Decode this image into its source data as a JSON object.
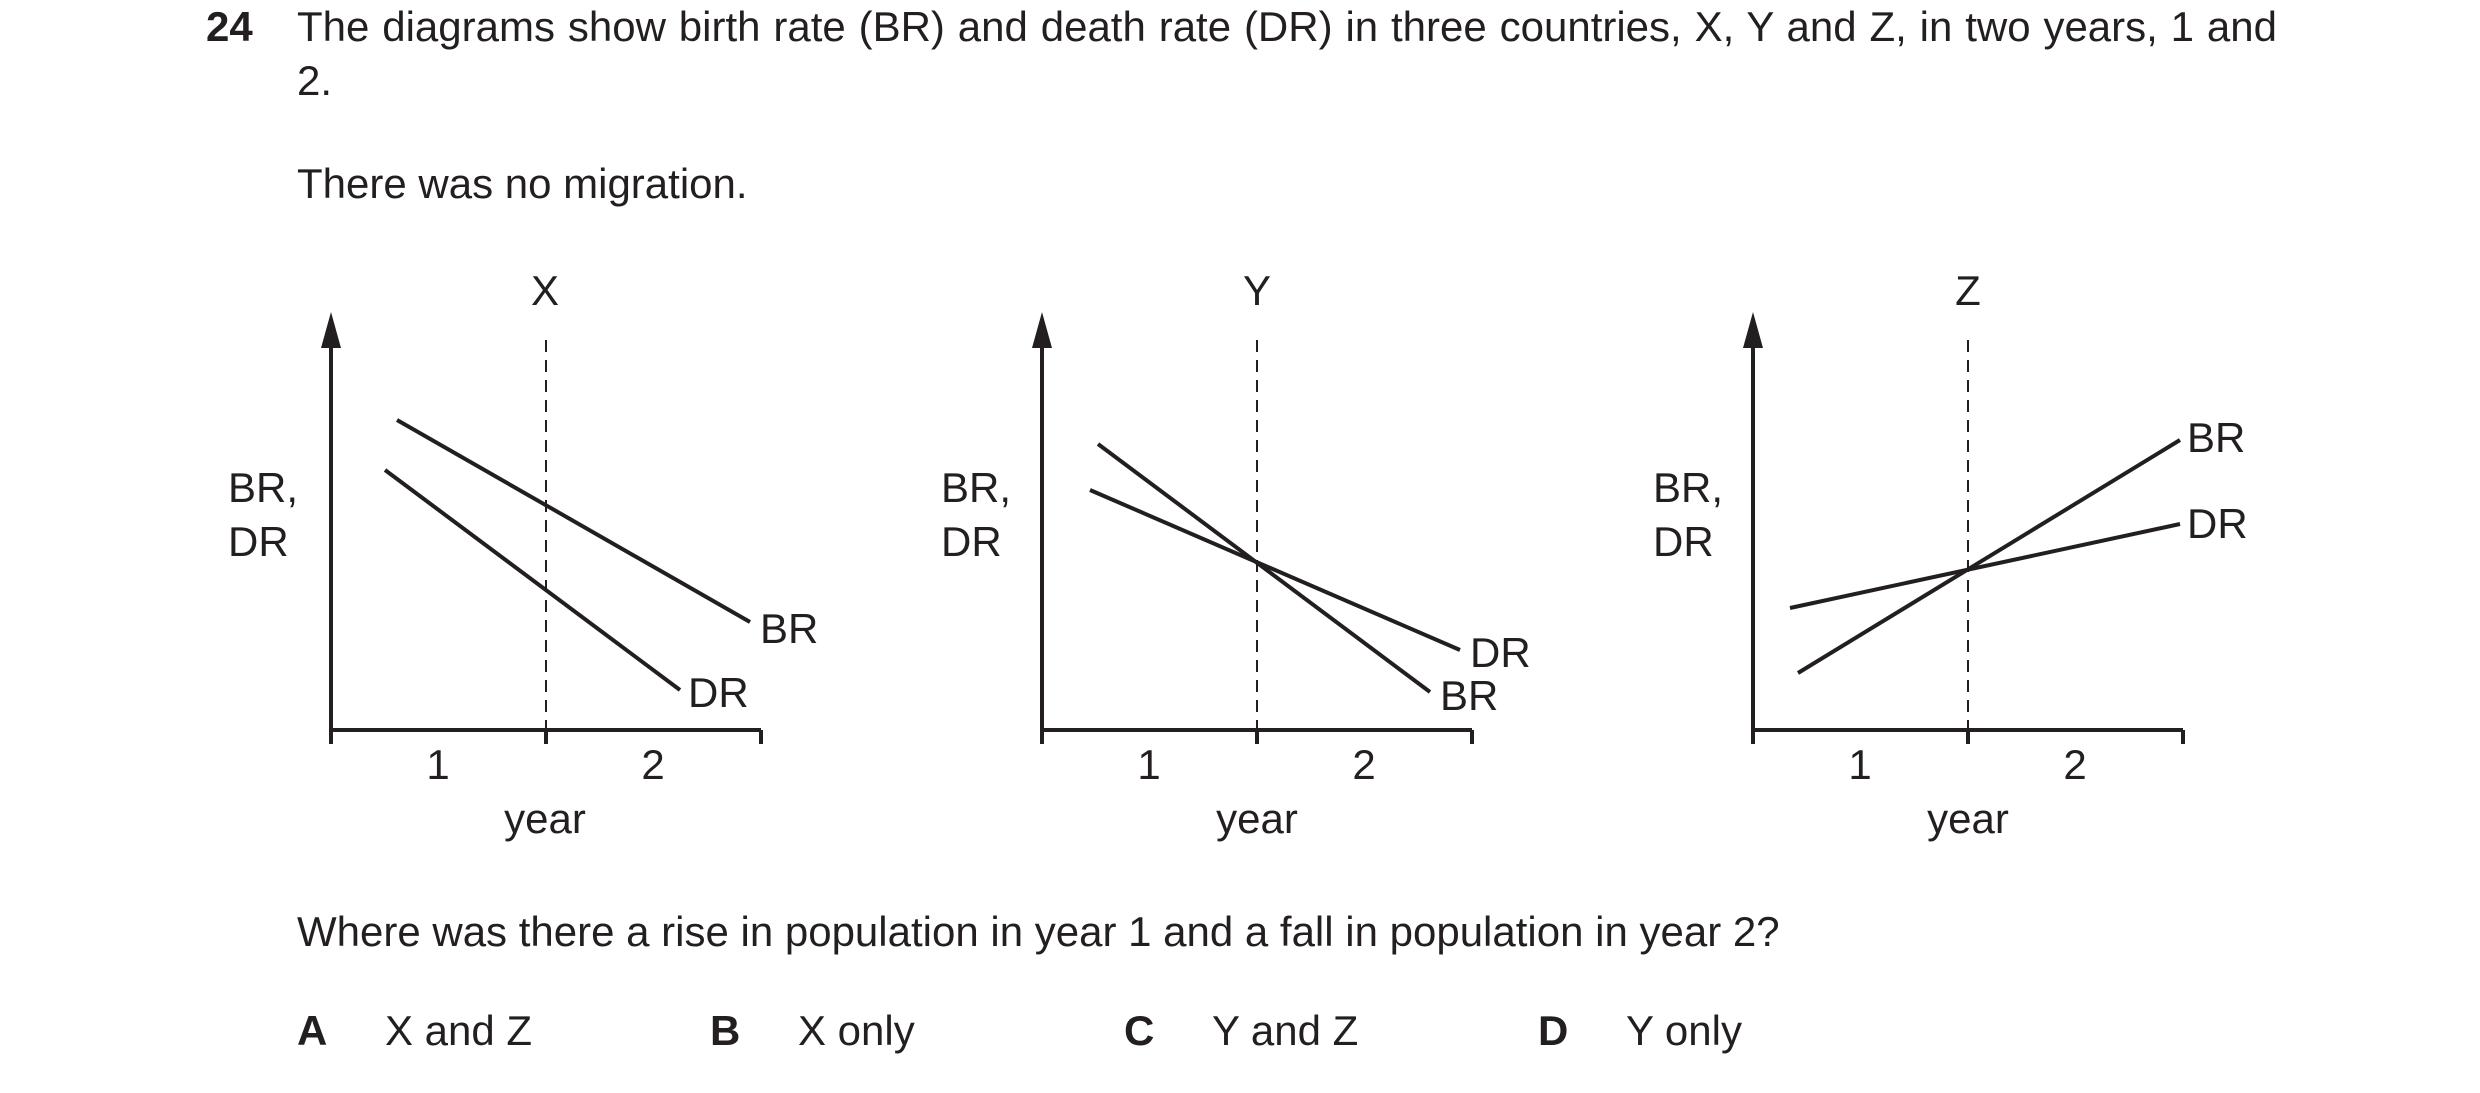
{
  "question": {
    "number": "24",
    "stem": "The diagrams show birth rate (BR) and death rate (DR) in three countries, X, Y and Z, in two years, 1 and 2.",
    "note": "There was no migration.",
    "prompt": "Where was there a rise in population in year 1 and a fall in population in year 2?"
  },
  "options": [
    {
      "letter": "A",
      "text": "X and Z"
    },
    {
      "letter": "B",
      "text": "X only"
    },
    {
      "letter": "C",
      "text": "Y and Z"
    },
    {
      "letter": "D",
      "text": "Y only"
    }
  ],
  "diagrams": [
    {
      "title": "X",
      "y_label_line1": "BR,",
      "y_label_line2": "DR",
      "x_label": "year",
      "tick_1": "1",
      "tick_2": "2",
      "br_label": "BR",
      "dr_label": "DR"
    },
    {
      "title": "Y",
      "y_label_line1": "BR,",
      "y_label_line2": "DR",
      "x_label": "year",
      "tick_1": "1",
      "tick_2": "2",
      "br_label": "BR",
      "dr_label": "DR"
    },
    {
      "title": "Z",
      "y_label_line1": "BR,",
      "y_label_line2": "DR",
      "x_label": "year",
      "tick_1": "1",
      "tick_2": "2",
      "br_label": "BR",
      "dr_label": "DR"
    }
  ]
}
